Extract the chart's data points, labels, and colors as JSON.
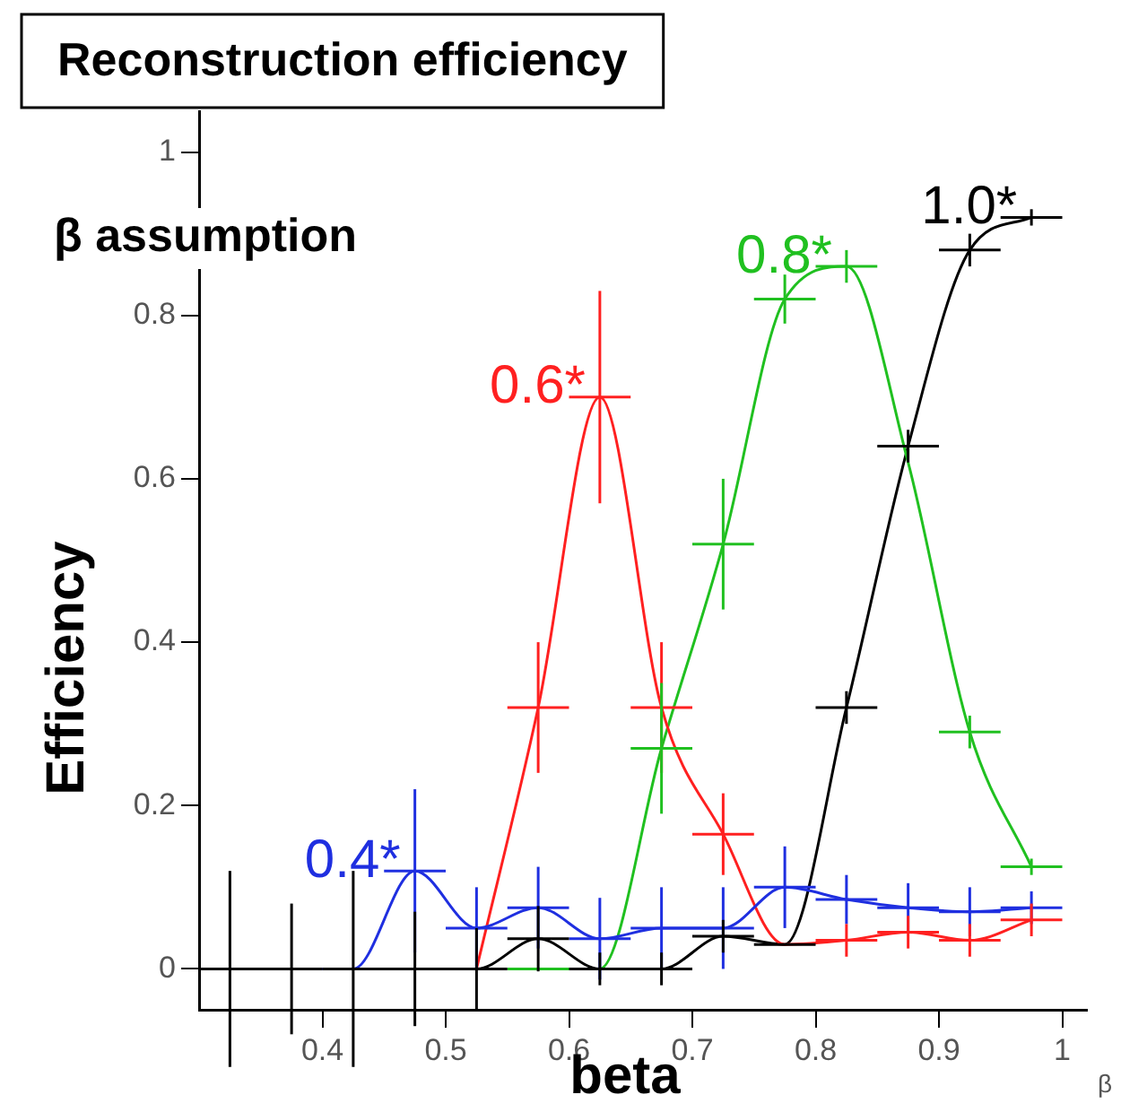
{
  "chart_data": {
    "type": "line",
    "title": "Reconstruction efficiency",
    "legend_title": "β assumption",
    "xlabel": "beta",
    "ylabel": "Efficiency",
    "annotations": [
      "β"
    ],
    "x": [
      0.325,
      0.375,
      0.425,
      0.475,
      0.525,
      0.575,
      0.625,
      0.675,
      0.725,
      0.775,
      0.825,
      0.875,
      0.925,
      0.975
    ],
    "xlim": [
      0.3,
      1.02
    ],
    "xticks": [
      0.4,
      0.5,
      0.6,
      0.7,
      0.8,
      0.9,
      1
    ],
    "ylim": [
      -0.05,
      1.05
    ],
    "yticks": [
      0,
      0.2,
      0.4,
      0.6,
      0.8,
      1
    ],
    "grid": false,
    "legend": false,
    "marker": "none",
    "line_style": "solid",
    "series": [
      {
        "name": "0.4*",
        "color": "#1f2fe0",
        "values": [
          null,
          0,
          0,
          0.12,
          0.05,
          0.075,
          0.037,
          0.05,
          0.05,
          0.1,
          0.085,
          0.075,
          0.07,
          0.075
        ],
        "errors": [
          null,
          null,
          null,
          0.1,
          0.05,
          0.05,
          0.05,
          0.05,
          0.05,
          0.05,
          0.03,
          0.03,
          0.03,
          0.02
        ],
        "xerrors": [
          null,
          null,
          null,
          0.025,
          0.025,
          0.025,
          0.025,
          0.025,
          0.025,
          0.025,
          0.025,
          0.025,
          0.025,
          0.025
        ]
      },
      {
        "name": "0.6*",
        "color": "#ff2020",
        "values": [
          null,
          null,
          null,
          null,
          0,
          0.32,
          0.7,
          0.32,
          0.165,
          0.03,
          0.035,
          0.045,
          0.035,
          0.06
        ],
        "errors": [
          null,
          null,
          null,
          null,
          null,
          0.08,
          0.13,
          0.08,
          0.05,
          null,
          0.02,
          0.02,
          0.02,
          0.02
        ],
        "xerrors": [
          null,
          null,
          null,
          null,
          null,
          0.025,
          0.025,
          0.025,
          0.025,
          null,
          0.025,
          0.025,
          0.025,
          0.025
        ]
      },
      {
        "name": "0.8*",
        "color": "#20c020",
        "values": [
          null,
          null,
          null,
          null,
          null,
          0,
          0,
          0.27,
          0.52,
          0.82,
          0.86,
          0.62,
          0.29,
          0.125
        ],
        "errors": [
          null,
          null,
          null,
          null,
          null,
          null,
          null,
          0.08,
          0.08,
          0.03,
          0.02,
          null,
          0.02,
          0.01
        ],
        "xerrors": [
          null,
          null,
          null,
          null,
          null,
          0.025,
          null,
          0.025,
          0.025,
          0.025,
          0.025,
          null,
          0.025,
          0.025
        ]
      },
      {
        "name": "1.0*",
        "color": "#000000",
        "values": [
          0,
          0,
          0,
          0,
          0,
          0.037,
          0,
          0,
          0.04,
          0.03,
          0.32,
          0.64,
          0.88,
          0.92
        ],
        "errors": [
          0.12,
          0.08,
          0.12,
          0.07,
          0.05,
          0.04,
          0.02,
          0.02,
          0.02,
          null,
          0.02,
          0.02,
          0.02,
          0.01
        ],
        "xerrors": [
          0.025,
          0.025,
          0.025,
          0.025,
          0.025,
          0.025,
          0.025,
          0.025,
          0.025,
          0.025,
          0.025,
          0.025,
          0.025,
          0.025
        ]
      }
    ]
  }
}
